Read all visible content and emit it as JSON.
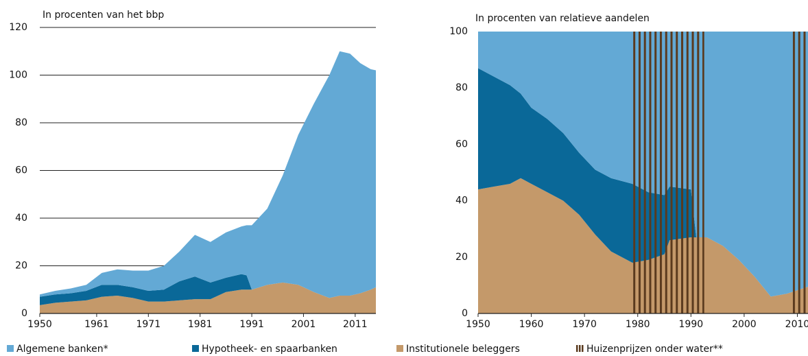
{
  "chart_data": [
    {
      "type": "stacked_area",
      "subtitle": "In procenten van het bbp",
      "x": [
        1950,
        1953,
        1956,
        1959,
        1962,
        1965,
        1968,
        1971,
        1974,
        1977,
        1980,
        1983,
        1986,
        1989,
        1990,
        1991,
        1994,
        1997,
        2000,
        2003,
        2006,
        2008,
        2010,
        2012,
        2014,
        2015
      ],
      "series": [
        {
          "name": "Algemene banken*",
          "color": "#63a9d5",
          "values": [
            1,
            1.5,
            2,
            2.5,
            5,
            6.5,
            7,
            8.5,
            10,
            12.5,
            17.5,
            17,
            19,
            20,
            21,
            27,
            32,
            45,
            63,
            79,
            93.5,
            102.5,
            101.5,
            96.5,
            92.5,
            91
          ]
        },
        {
          "name": "Hypotheek- en spaarbanken",
          "color": "#0a6898",
          "values": [
            3.5,
            3.5,
            3.5,
            4,
            5,
            4.5,
            4.5,
            4.5,
            5,
            8,
            9.5,
            7,
            6,
            6.5,
            6,
            0,
            0,
            0,
            0,
            0,
            0,
            0,
            0,
            0,
            0,
            0
          ]
        },
        {
          "name": "Institutionele beleggers",
          "color": "#c4996a",
          "values": [
            3.5,
            4.5,
            5,
            5.5,
            7,
            7.5,
            6.5,
            5,
            5,
            5.5,
            6,
            6,
            9,
            10,
            10,
            10,
            12,
            13,
            12,
            9,
            6.5,
            7.5,
            7.5,
            8.5,
            10,
            11
          ]
        }
      ],
      "xlim": [
        1950,
        2015
      ],
      "xticks": [
        1950,
        1961,
        1971,
        1981,
        1991,
        2001,
        2011
      ],
      "ylim": [
        0,
        120
      ],
      "yticks": [
        0,
        20,
        40,
        60,
        80,
        100,
        120
      ],
      "grid": true
    },
    {
      "type": "stacked_area",
      "subtitle": "In procenten van relatieve aandelen",
      "x": [
        1950,
        1953,
        1956,
        1958,
        1960,
        1963,
        1966,
        1969,
        1972,
        1975,
        1979,
        1982,
        1985,
        1986,
        1990,
        1991,
        1993,
        1996,
        1999,
        2002,
        2005,
        2008,
        2012
      ],
      "series": [
        {
          "color": "#63a9d5",
          "values": [
            13,
            16,
            19,
            22,
            27,
            31,
            36,
            43,
            49,
            52,
            54,
            57,
            58,
            55,
            56,
            73,
            73,
            76,
            81,
            87,
            94,
            93,
            90.5
          ]
        },
        {
          "color": "#0a6898",
          "values": [
            43,
            39,
            35,
            30,
            27,
            26,
            24,
            22,
            23,
            26,
            28,
            24,
            21,
            19,
            17,
            0,
            0,
            0,
            0,
            0,
            0,
            0,
            0
          ]
        },
        {
          "color": "#c4996a",
          "values": [
            44,
            45,
            46,
            48,
            46,
            43,
            40,
            35,
            28,
            22,
            18,
            19,
            21,
            26,
            27,
            27,
            27,
            24,
            19,
            13,
            6,
            7,
            9.5
          ]
        }
      ],
      "shaded_label": "Huizenprijzen onder water**",
      "shaded_color": "#5a3a1e",
      "shaded_periods": [
        [
          1979,
          1992.5
        ],
        [
          2009,
          2012
        ]
      ],
      "xlim": [
        1950,
        2012
      ],
      "xticks": [
        1950,
        1960,
        1970,
        1980,
        1990,
        2000,
        2010
      ],
      "ylim": [
        0,
        100
      ],
      "yticks": [
        0,
        20,
        40,
        60,
        80,
        100
      ],
      "grid": false
    }
  ]
}
